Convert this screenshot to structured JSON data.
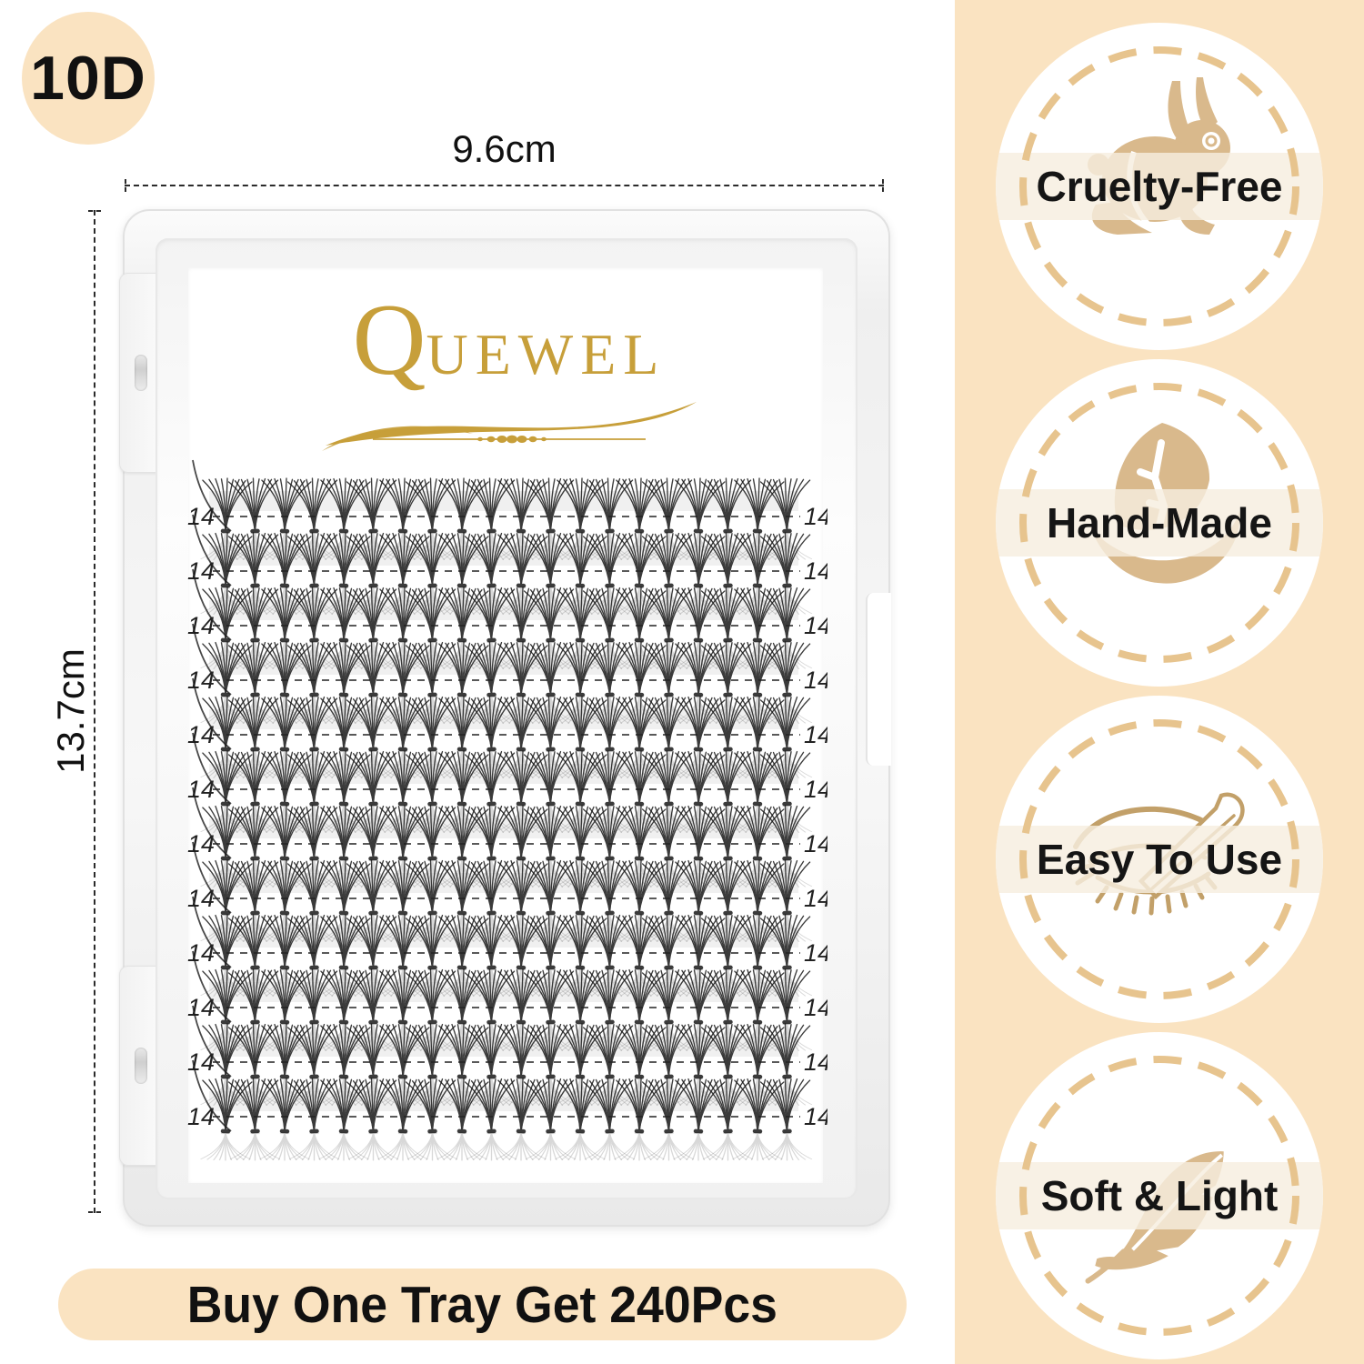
{
  "product_badge": {
    "label": "10D"
  },
  "dimensions": {
    "width": "9.6cm",
    "height": "13.7cm"
  },
  "logo": {
    "initial": "Q",
    "rest": "UEWEL"
  },
  "tray": {
    "clusters_per_row": 20,
    "row_count": 12,
    "rows": [
      {
        "left_label": "14",
        "right_label": "14"
      },
      {
        "left_label": "14",
        "right_label": "14"
      },
      {
        "left_label": "14",
        "right_label": "14"
      },
      {
        "left_label": "14",
        "right_label": "14"
      },
      {
        "left_label": "14",
        "right_label": "14"
      },
      {
        "left_label": "14",
        "right_label": "14"
      },
      {
        "left_label": "14",
        "right_label": "14"
      },
      {
        "left_label": "14",
        "right_label": "14"
      },
      {
        "left_label": "14",
        "right_label": "14"
      },
      {
        "left_label": "14",
        "right_label": "14"
      },
      {
        "left_label": "14",
        "right_label": "14"
      },
      {
        "left_label": "14",
        "right_label": "14"
      }
    ]
  },
  "banner": {
    "text": "Buy One Tray Get 240Pcs"
  },
  "features": [
    {
      "label": "Cruelty-Free",
      "icon": "rabbit-icon"
    },
    {
      "label": "Hand-Made",
      "icon": "leaf-hand-icon"
    },
    {
      "label": "Easy To Use",
      "icon": "eye-tweezers-icon"
    },
    {
      "label": "Soft & Light",
      "icon": "feather-icon"
    }
  ],
  "colors": {
    "peach": "#FAE3C1",
    "tan": "#D9B98C",
    "ring": "#E7C48E",
    "gold": "#C79F3A",
    "outline": "#C2A069",
    "lash": "#161616"
  }
}
